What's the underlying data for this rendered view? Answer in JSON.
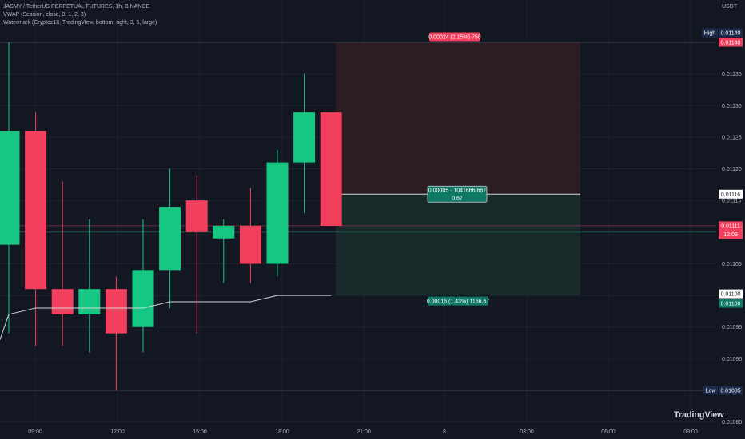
{
  "header": {
    "title": "JASMY / TetherUS PERPETUAL FUTURES, 1h, BINANCE",
    "indicator_vwap": "VWAP (Session, close, 0, 1, 2, 3)",
    "indicator_watermark": "Watermark (Cryptoz18, TradingView, bottom, right, 3, 6, large)",
    "currency": "USDT"
  },
  "watermark_text": "TradingView",
  "colors": {
    "background": "#131722",
    "up": "#16c784",
    "down": "#f23f5d",
    "vwap": "#d1d4dc",
    "stop_zone": "#2b1d22",
    "target_zone": "#182a2a",
    "price_axis_text": "#b2b5be"
  },
  "chart_data": {
    "type": "candlestick",
    "x_ticks": [
      "09:00",
      "12:00",
      "15:00",
      "18:00",
      "21:00",
      "8",
      "03:00",
      "06:00",
      "09:00"
    ],
    "y_ticks": [
      "0.01140",
      "0.01135",
      "0.01130",
      "0.01125",
      "0.01120",
      "0.01115",
      "0.01110",
      "0.01105",
      "0.01100",
      "0.01095",
      "0.01090",
      "0.01085",
      "0.01080"
    ],
    "ylim": [
      0.01079,
      0.01144
    ],
    "candles": [
      {
        "o": 0.01108,
        "h": 0.0114,
        "l": 0.01094,
        "c": 0.01126
      },
      {
        "o": 0.01126,
        "h": 0.01129,
        "l": 0.01092,
        "c": 0.01101
      },
      {
        "o": 0.01101,
        "h": 0.01118,
        "l": 0.01092,
        "c": 0.01097
      },
      {
        "o": 0.01097,
        "h": 0.01112,
        "l": 0.01091,
        "c": 0.01101
      },
      {
        "o": 0.01101,
        "h": 0.01103,
        "l": 0.01085,
        "c": 0.01094
      },
      {
        "o": 0.01095,
        "h": 0.01112,
        "l": 0.01091,
        "c": 0.01104
      },
      {
        "o": 0.01104,
        "h": 0.0112,
        "l": 0.01098,
        "c": 0.01114
      },
      {
        "o": 0.01115,
        "h": 0.01119,
        "l": 0.01094,
        "c": 0.0111
      },
      {
        "o": 0.01109,
        "h": 0.01112,
        "l": 0.01102,
        "c": 0.01111
      },
      {
        "o": 0.01111,
        "h": 0.01117,
        "l": 0.01102,
        "c": 0.01105
      },
      {
        "o": 0.01105,
        "h": 0.01123,
        "l": 0.01103,
        "c": 0.01121
      },
      {
        "o": 0.01121,
        "h": 0.01135,
        "l": 0.01113,
        "c": 0.01129
      },
      {
        "o": 0.01129,
        "h": 0.01129,
        "l": 0.01111,
        "c": 0.01111
      }
    ],
    "vwap": [
      0.01097,
      0.01098,
      0.01098,
      0.01098,
      0.01098,
      0.01098,
      0.01099,
      0.01099,
      0.01099,
      0.01099,
      0.011,
      0.011,
      0.011
    ],
    "position": {
      "entry": 0.01116,
      "stop": 0.0114,
      "target": 0.011,
      "stop_label": "0.00024 (2.15%) 750",
      "center_label_line1": "0.00005 · 1041666.667",
      "center_label_line2": "0.67",
      "target_label": "0.00016 (1.43%) 1166.67"
    },
    "high_level": {
      "label": "High",
      "value": "0.01140",
      "price": 0.0114
    },
    "low_level": {
      "label": "Low",
      "value": "0.01085",
      "price": 0.01085
    },
    "last_price": {
      "value": "0.01111",
      "countdown": "12:09",
      "price": 0.01111
    },
    "entry_tag": "0.01116",
    "stop_tag": "0.01140",
    "target_tag_white": "0.01100",
    "target_tag_green": "0.01100"
  }
}
